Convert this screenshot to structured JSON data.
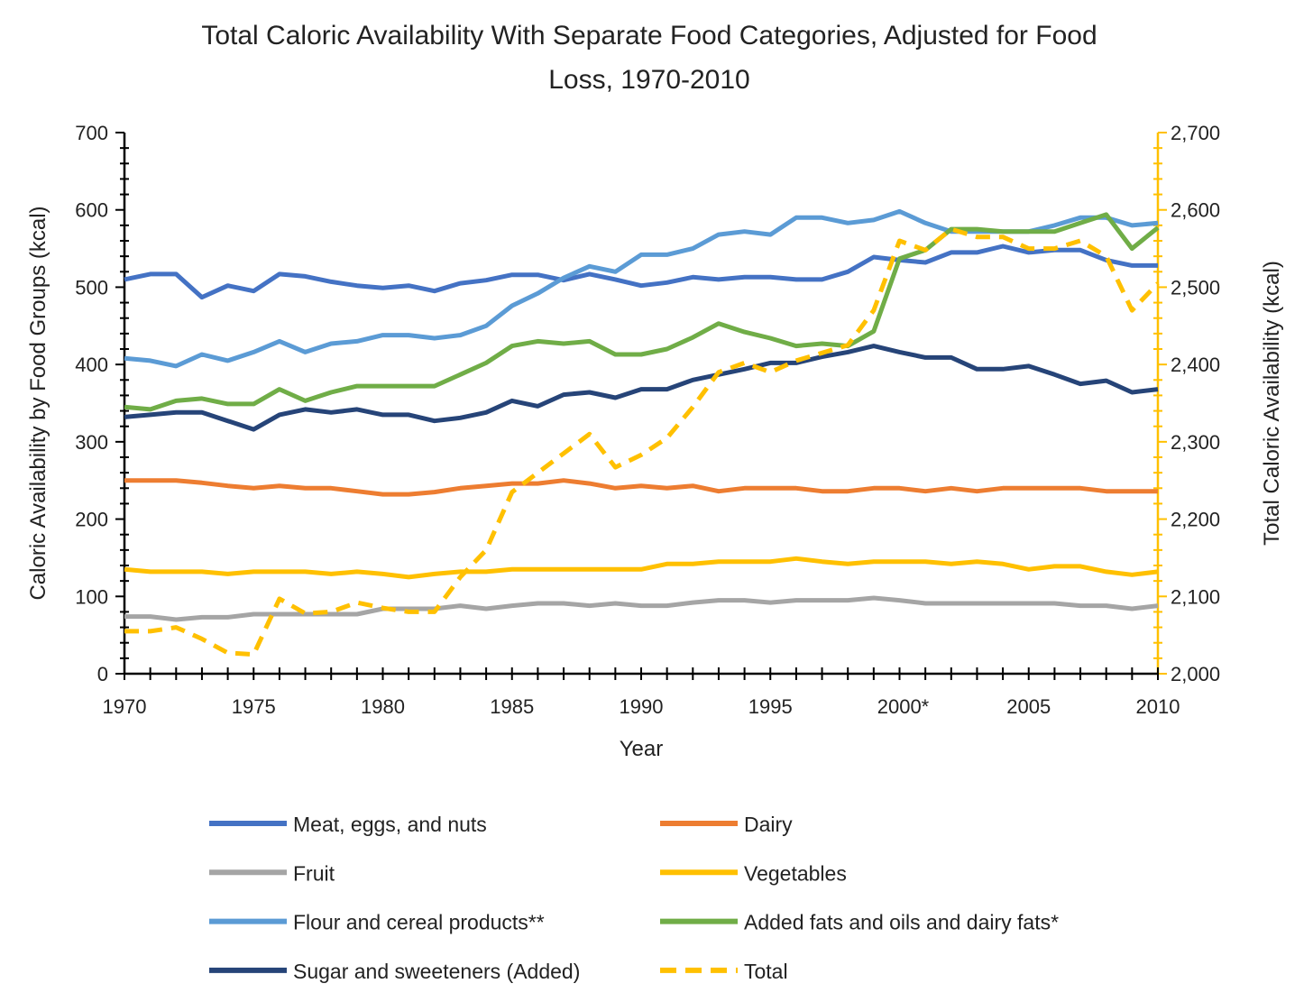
{
  "chart_data": {
    "type": "line",
    "title_lines": [
      "Total Caloric Availability With Separate Food Categories, Adjusted for Food",
      "Loss, 1970-2010"
    ],
    "xlabel": "Year",
    "ylabel": "Caloric Availability by Food Groups (kcal)",
    "y2label": "Total Caloric Availability (kcal)",
    "xlim": [
      1970,
      2010
    ],
    "ylim": [
      0,
      700
    ],
    "y2lim": [
      2000,
      2700
    ],
    "x_ticks": [
      1970,
      1975,
      1980,
      1985,
      1990,
      1995,
      2000,
      2005,
      2010
    ],
    "x_tick_labels": [
      "1970",
      "1975",
      "1980",
      "1985",
      "1990",
      "1995",
      "2000*",
      "2005",
      "2010"
    ],
    "y_tick_labels": [
      "0",
      "100",
      "200",
      "300",
      "400",
      "500",
      "600",
      "700"
    ],
    "y2_tick_labels": [
      "2,000",
      "2,100",
      "2,200",
      "2,300",
      "2,400",
      "2,500",
      "2,600",
      "2,700"
    ],
    "grid": false,
    "legend_placement": "bottom",
    "x": [
      1970,
      1971,
      1972,
      1973,
      1974,
      1975,
      1976,
      1977,
      1978,
      1979,
      1980,
      1981,
      1982,
      1983,
      1984,
      1985,
      1986,
      1987,
      1988,
      1989,
      1990,
      1991,
      1992,
      1993,
      1994,
      1995,
      1996,
      1997,
      1998,
      1999,
      2000,
      2001,
      2002,
      2003,
      2004,
      2005,
      2006,
      2007,
      2008,
      2009,
      2010
    ],
    "series": [
      {
        "name": "Meat, eggs, and nuts",
        "color": "#4472C4",
        "axis": "left",
        "dashed": false,
        "values": [
          510,
          517,
          517,
          487,
          502,
          495,
          517,
          514,
          507,
          502,
          499,
          502,
          495,
          505,
          509,
          516,
          516,
          509,
          517,
          510,
          502,
          506,
          513,
          510,
          513,
          513,
          510,
          510,
          520,
          539,
          535,
          532,
          545,
          545,
          553,
          545,
          548,
          548,
          535,
          528,
          528
        ]
      },
      {
        "name": "Dairy",
        "color": "#ED7D31",
        "axis": "left",
        "dashed": false,
        "values": [
          250,
          250,
          250,
          247,
          243,
          240,
          243,
          240,
          240,
          236,
          232,
          232,
          235,
          240,
          243,
          246,
          246,
          250,
          246,
          240,
          243,
          240,
          243,
          236,
          240,
          240,
          240,
          236,
          236,
          240,
          240,
          236,
          240,
          236,
          240,
          240,
          240,
          240,
          236,
          236,
          236
        ]
      },
      {
        "name": "Fruit",
        "color": "#A5A5A5",
        "axis": "left",
        "dashed": false,
        "values": [
          74,
          74,
          70,
          73,
          73,
          77,
          77,
          77,
          77,
          77,
          84,
          84,
          84,
          88,
          84,
          88,
          91,
          91,
          88,
          91,
          88,
          88,
          92,
          95,
          95,
          92,
          95,
          95,
          95,
          98,
          95,
          91,
          91,
          91,
          91,
          91,
          91,
          88,
          88,
          84,
          88
        ]
      },
      {
        "name": "Vegetables",
        "color": "#FFC000",
        "axis": "left",
        "dashed": false,
        "values": [
          135,
          132,
          132,
          132,
          129,
          132,
          132,
          132,
          129,
          132,
          129,
          125,
          129,
          132,
          132,
          135,
          135,
          135,
          135,
          135,
          135,
          142,
          142,
          145,
          145,
          145,
          149,
          145,
          142,
          145,
          145,
          145,
          142,
          145,
          142,
          135,
          139,
          139,
          132,
          128,
          132
        ]
      },
      {
        "name": "Flour and cereal products**",
        "color": "#5B9BD5",
        "axis": "left",
        "dashed": false,
        "values": [
          408,
          405,
          398,
          413,
          405,
          416,
          430,
          416,
          427,
          430,
          438,
          438,
          434,
          438,
          450,
          476,
          492,
          512,
          527,
          520,
          542,
          542,
          550,
          568,
          572,
          568,
          590,
          590,
          583,
          587,
          598,
          583,
          572,
          572,
          572,
          572,
          580,
          590,
          590,
          580,
          583
        ]
      },
      {
        "name": "Added fats and oils and dairy fats*",
        "color": "#70AD47",
        "axis": "left",
        "dashed": false,
        "values": [
          345,
          342,
          353,
          356,
          349,
          349,
          368,
          353,
          364,
          372,
          372,
          372,
          372,
          387,
          402,
          424,
          430,
          427,
          430,
          413,
          413,
          420,
          435,
          453,
          442,
          434,
          424,
          427,
          424,
          443,
          537,
          548,
          575,
          575,
          572,
          572,
          572,
          583,
          594,
          550,
          577
        ]
      },
      {
        "name": "Sugar and sweeteners (Added)",
        "color": "#264478",
        "axis": "left",
        "dashed": false,
        "values": [
          332,
          335,
          338,
          338,
          327,
          316,
          335,
          342,
          338,
          342,
          335,
          335,
          327,
          331,
          338,
          353,
          346,
          361,
          364,
          357,
          368,
          368,
          380,
          387,
          394,
          402,
          402,
          410,
          416,
          424,
          416,
          409,
          409,
          394,
          394,
          398,
          387,
          375,
          379,
          364,
          368
        ]
      },
      {
        "name": "Total",
        "color": "#FFC000",
        "axis": "right",
        "dashed": true,
        "values": [
          2055,
          2055,
          2060,
          2045,
          2027,
          2025,
          2097,
          2078,
          2080,
          2092,
          2085,
          2080,
          2080,
          2125,
          2160,
          2235,
          2260,
          2285,
          2310,
          2267,
          2283,
          2305,
          2345,
          2390,
          2402,
          2390,
          2405,
          2415,
          2425,
          2470,
          2560,
          2548,
          2575,
          2565,
          2565,
          2550,
          2550,
          2560,
          2540,
          2470,
          2505
        ]
      }
    ]
  }
}
